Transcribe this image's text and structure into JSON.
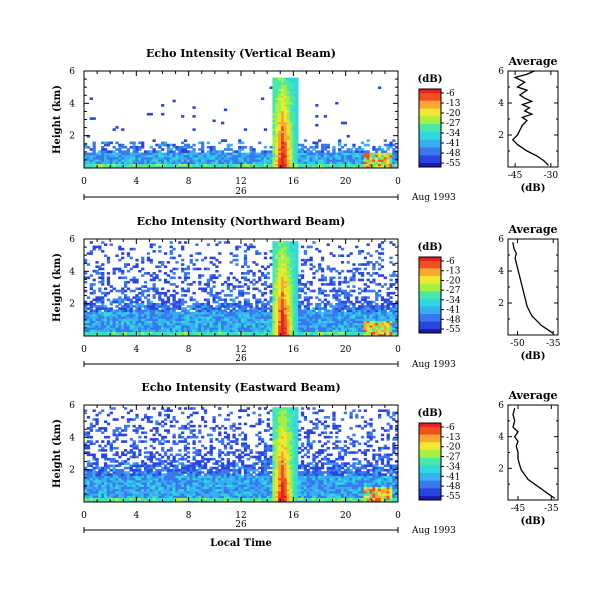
{
  "chart_data": [
    {
      "type": "heatmap",
      "title": "Echo Intensity (Vertical Beam)",
      "ylabel": "Height (km)",
      "xlabel": "",
      "xlim": [
        0,
        24
      ],
      "ylim": [
        0,
        6
      ],
      "xticks": [
        "0",
        "4",
        "8",
        "12",
        "16",
        "20",
        "0"
      ],
      "yticks": [
        "2",
        "4",
        "6"
      ],
      "date_label": "26",
      "month_label": "Aug 1993",
      "colorbar": {
        "label": "(dB)",
        "ticks": [
          "-6",
          "-13",
          "-20",
          "-27",
          "-34",
          "-41",
          "-48",
          "-55"
        ]
      },
      "average": {
        "title": "Average",
        "xlabel": "(dB)",
        "xticks": [
          "-45",
          "-30"
        ],
        "xlim": [
          -48,
          -27
        ],
        "yticks": [
          "2",
          "4",
          "6"
        ],
        "profile": [
          [
            -31,
            0.1
          ],
          [
            -33,
            0.4
          ],
          [
            -36,
            0.7
          ],
          [
            -40,
            1.0
          ],
          [
            -44,
            1.4
          ],
          [
            -46,
            1.7
          ],
          [
            -44,
            2.0
          ],
          [
            -43,
            2.3
          ],
          [
            -42,
            2.6
          ],
          [
            -40,
            2.9
          ],
          [
            -42,
            3.1
          ],
          [
            -38,
            3.3
          ],
          [
            -41,
            3.5
          ],
          [
            -39,
            3.7
          ],
          [
            -42,
            3.9
          ],
          [
            -38,
            4.1
          ],
          [
            -41,
            4.3
          ],
          [
            -43,
            4.5
          ],
          [
            -40,
            4.8
          ],
          [
            -44,
            5.0
          ],
          [
            -41,
            5.3
          ],
          [
            -45,
            5.6
          ],
          [
            -40,
            5.8
          ],
          [
            -37,
            6.0
          ]
        ]
      }
    },
    {
      "type": "heatmap",
      "title": "Echo Intensity (Northward Beam)",
      "ylabel": "Height (km)",
      "xlabel": "",
      "xlim": [
        0,
        24
      ],
      "ylim": [
        0,
        6
      ],
      "xticks": [
        "0",
        "4",
        "8",
        "12",
        "16",
        "20",
        "0"
      ],
      "yticks": [
        "2",
        "4",
        "6"
      ],
      "date_label": "26",
      "month_label": "Aug 1993",
      "colorbar": {
        "label": "(dB)",
        "ticks": [
          "-6",
          "-13",
          "-20",
          "-27",
          "-34",
          "-41",
          "-48",
          "-55"
        ]
      },
      "average": {
        "title": "Average",
        "xlabel": "(dB)",
        "xticks": [
          "-50",
          "-35"
        ],
        "xlim": [
          -54,
          -33
        ],
        "yticks": [
          "2",
          "4",
          "6"
        ],
        "profile": [
          [
            -35,
            0.1
          ],
          [
            -37,
            0.3
          ],
          [
            -40,
            0.6
          ],
          [
            -42,
            0.9
          ],
          [
            -44,
            1.2
          ],
          [
            -45,
            1.5
          ],
          [
            -46,
            1.8
          ],
          [
            -46.5,
            2.1
          ],
          [
            -47,
            2.4
          ],
          [
            -47.5,
            2.7
          ],
          [
            -48,
            3.0
          ],
          [
            -48.5,
            3.3
          ],
          [
            -49,
            3.6
          ],
          [
            -49.5,
            3.9
          ],
          [
            -50,
            4.2
          ],
          [
            -50.5,
            4.5
          ],
          [
            -51,
            4.8
          ],
          [
            -50.5,
            5.1
          ],
          [
            -51.5,
            5.4
          ],
          [
            -52,
            5.8
          ]
        ]
      }
    },
    {
      "type": "heatmap",
      "title": "Echo Intensity (Eastward Beam)",
      "ylabel": "Height (km)",
      "xlabel": "Local Time",
      "xlim": [
        0,
        24
      ],
      "ylim": [
        0,
        6
      ],
      "xticks": [
        "0",
        "4",
        "8",
        "12",
        "16",
        "20",
        "0"
      ],
      "yticks": [
        "2",
        "4",
        "6"
      ],
      "date_label": "26",
      "month_label": "Aug 1993",
      "colorbar": {
        "label": "(dB)",
        "ticks": [
          "-6",
          "-13",
          "-20",
          "-27",
          "-34",
          "-41",
          "-48",
          "-55"
        ]
      },
      "average": {
        "title": "Average",
        "xlabel": "(dB)",
        "xticks": [
          "-45",
          "-35"
        ],
        "xlim": [
          -48,
          -33
        ],
        "yticks": [
          "2",
          "4",
          "6"
        ],
        "profile": [
          [
            -34,
            0.1
          ],
          [
            -36,
            0.4
          ],
          [
            -38,
            0.7
          ],
          [
            -40,
            1.0
          ],
          [
            -42,
            1.3
          ],
          [
            -43,
            1.6
          ],
          [
            -44,
            1.9
          ],
          [
            -44.5,
            2.2
          ],
          [
            -45,
            2.6
          ],
          [
            -45,
            3.0
          ],
          [
            -45.5,
            3.4
          ],
          [
            -45,
            3.7
          ],
          [
            -46,
            4.0
          ],
          [
            -45,
            4.3
          ],
          [
            -46.5,
            4.6
          ],
          [
            -46,
            5.0
          ],
          [
            -46.5,
            5.4
          ],
          [
            -46,
            5.8
          ]
        ]
      }
    }
  ]
}
